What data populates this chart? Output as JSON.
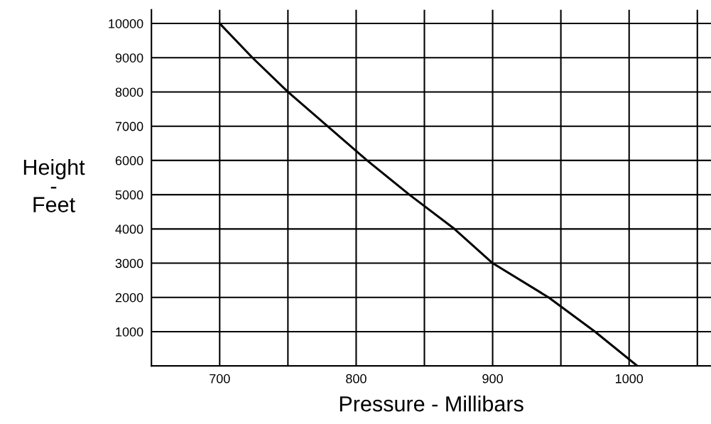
{
  "chart_data": {
    "type": "line",
    "xlabel": "Pressure - Millibars",
    "ylabel": "Height\n-\nFeet",
    "x": [
      700,
      724,
      750,
      779,
      808,
      839,
      872,
      900,
      941,
      975,
      1006
    ],
    "series": [
      {
        "color": "#000000",
        "values": [
          10000,
          9000,
          8000,
          7000,
          6000,
          5000,
          4000,
          3000,
          2000,
          1000,
          0
        ]
      }
    ],
    "xlim": [
      650,
      1060
    ],
    "ylim": [
      0,
      10400
    ],
    "xticks": [
      700,
      {
        "value": 750,
        "label": null
      },
      800,
      {
        "value": 850,
        "label": null
      },
      900,
      {
        "value": 950,
        "label": null
      },
      1000,
      {
        "value": 1050,
        "label": null
      }
    ],
    "yticks": [
      {
        "value": 0,
        "label": null
      },
      1000,
      2000,
      3000,
      4000,
      5000,
      6000,
      7000,
      8000,
      9000,
      10000
    ],
    "grid": true,
    "marker": "none",
    "line_style": "solid"
  }
}
